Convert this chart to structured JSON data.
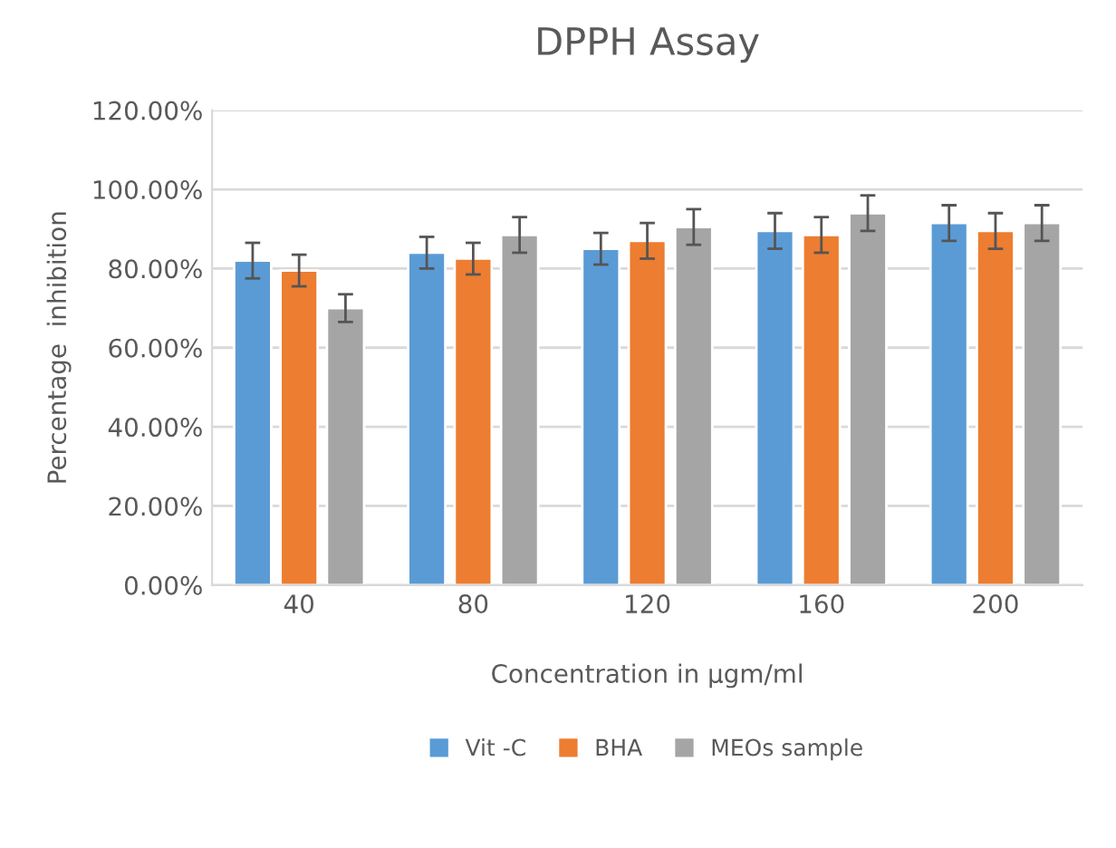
{
  "chart_data": {
    "type": "bar",
    "title": "DPPH Assay",
    "xlabel": "Concentration in μgm/ml",
    "ylabel": "Percentage  inhibition",
    "categories": [
      "40",
      "80",
      "120",
      "160",
      "200"
    ],
    "series": [
      {
        "name": "Vit -C",
        "color": "#5b9bd5",
        "values": [
          82,
          84,
          85,
          89.5,
          91.5
        ],
        "errors": [
          4.5,
          4,
          4,
          4.5,
          4.5
        ]
      },
      {
        "name": "BHA",
        "color": "#ed7d31",
        "values": [
          79.5,
          82.5,
          87,
          88.5,
          89.5
        ],
        "errors": [
          4,
          4,
          4.5,
          4.5,
          4.5
        ]
      },
      {
        "name": "MEOs sample",
        "color": "#a5a5a5",
        "values": [
          70,
          88.5,
          90.5,
          94,
          91.5
        ],
        "errors": [
          3.5,
          4.5,
          4.5,
          4.5,
          4.5
        ]
      }
    ],
    "ylim": [
      0,
      120
    ],
    "yticks": [
      {
        "value": 0,
        "label": "0.00%"
      },
      {
        "value": 20,
        "label": "20.00%"
      },
      {
        "value": 40,
        "label": "40.00%"
      },
      {
        "value": 60,
        "label": "60.00%"
      },
      {
        "value": 80,
        "label": "80.00%"
      },
      {
        "value": 100,
        "label": "100.00%"
      },
      {
        "value": 120,
        "label": "120.00%"
      }
    ],
    "grid": "y",
    "legend": "bottom"
  }
}
